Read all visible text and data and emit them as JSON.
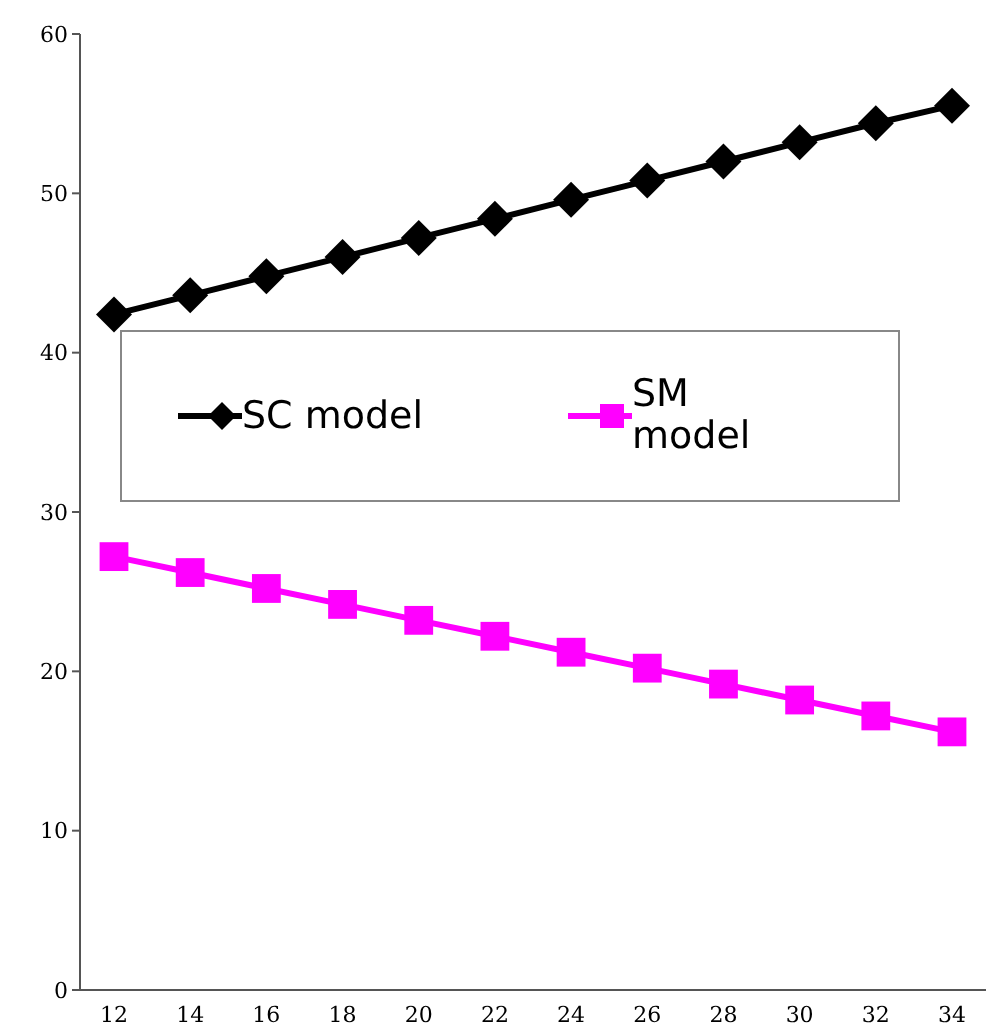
{
  "chart_data": {
    "type": "line",
    "categories": [
      "12",
      "14",
      "16",
      "18",
      "20",
      "22",
      "24",
      "26",
      "28",
      "30",
      "32",
      "34"
    ],
    "series": [
      {
        "name": "SC model",
        "color": "#000000",
        "marker": "diamond",
        "values": [
          42.4,
          43.6,
          44.8,
          46.0,
          47.2,
          48.4,
          49.6,
          50.8,
          52.0,
          53.2,
          54.4,
          55.5
        ]
      },
      {
        "name": "SM model",
        "color": "#ff00ff",
        "marker": "square",
        "values": [
          27.2,
          26.2,
          25.2,
          24.2,
          23.2,
          22.2,
          21.2,
          20.2,
          19.2,
          18.2,
          17.2,
          16.2
        ]
      }
    ],
    "ylim": [
      0,
      60
    ],
    "yticks": [
      0,
      10,
      20,
      30,
      40,
      50,
      60
    ],
    "grid": false,
    "legend": "center"
  }
}
